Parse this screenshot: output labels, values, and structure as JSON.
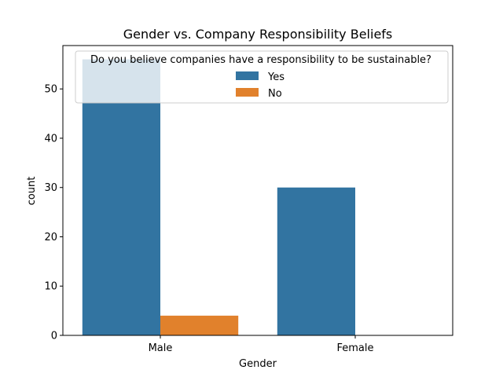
{
  "chart_data": {
    "type": "bar",
    "title": "Gender vs. Company Responsibility Beliefs",
    "xlabel": "Gender",
    "ylabel": "count",
    "categories": [
      "Male",
      "Female"
    ],
    "series": [
      {
        "name": "Yes",
        "values": [
          56,
          30
        ],
        "color": "#3274a1"
      },
      {
        "name": "No",
        "values": [
          4,
          0
        ],
        "color": "#e1812c"
      }
    ],
    "ylim": [
      0,
      58.8
    ],
    "yticks": [
      0,
      10,
      20,
      30,
      40,
      50
    ],
    "grid": false,
    "legend": {
      "title": "Do you believe companies have a responsibility to be sustainable?",
      "placement": "top-center"
    }
  }
}
